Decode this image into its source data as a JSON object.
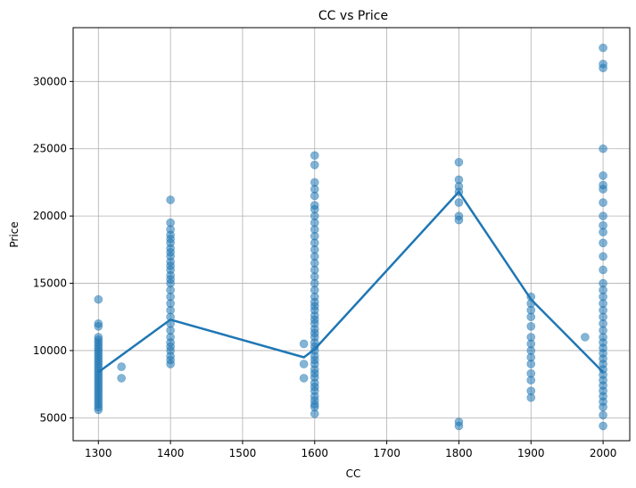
{
  "chart_data": {
    "type": "scatter",
    "title": "CC vs Price",
    "xlabel": "CC",
    "ylabel": "Price",
    "xlim": [
      1265,
      2037
    ],
    "ylim": [
      3300,
      34000
    ],
    "xticks": [
      1300,
      1400,
      1500,
      1600,
      1700,
      1800,
      1900,
      2000
    ],
    "yticks": [
      5000,
      10000,
      15000,
      20000,
      25000,
      30000
    ],
    "grid": true,
    "point_color": "#1f77b4",
    "point_alpha": 0.55,
    "line_color": "#1f77b4",
    "series": [
      {
        "type": "scatter",
        "points": [
          [
            1300,
            5600
          ],
          [
            1300,
            5800
          ],
          [
            1300,
            6000
          ],
          [
            1300,
            6200
          ],
          [
            1300,
            6400
          ],
          [
            1300,
            6600
          ],
          [
            1300,
            6800
          ],
          [
            1300,
            7000
          ],
          [
            1300,
            7200
          ],
          [
            1300,
            7400
          ],
          [
            1300,
            7600
          ],
          [
            1300,
            7800
          ],
          [
            1300,
            8000
          ],
          [
            1300,
            8200
          ],
          [
            1300,
            8400
          ],
          [
            1300,
            8600
          ],
          [
            1300,
            8800
          ],
          [
            1300,
            9000
          ],
          [
            1300,
            9200
          ],
          [
            1300,
            9400
          ],
          [
            1300,
            9600
          ],
          [
            1300,
            9800
          ],
          [
            1300,
            10000
          ],
          [
            1300,
            10200
          ],
          [
            1300,
            10400
          ],
          [
            1300,
            10600
          ],
          [
            1300,
            10800
          ],
          [
            1300,
            11000
          ],
          [
            1300,
            11800
          ],
          [
            1300,
            12000
          ],
          [
            1300,
            13800
          ],
          [
            1332,
            7950
          ],
          [
            1332,
            8800
          ],
          [
            1400,
            9000
          ],
          [
            1400,
            9300
          ],
          [
            1400,
            9600
          ],
          [
            1400,
            10000
          ],
          [
            1400,
            10300
          ],
          [
            1400,
            10600
          ],
          [
            1400,
            11000
          ],
          [
            1400,
            11500
          ],
          [
            1400,
            12000
          ],
          [
            1400,
            12500
          ],
          [
            1400,
            13000
          ],
          [
            1400,
            13500
          ],
          [
            1400,
            14000
          ],
          [
            1400,
            14500
          ],
          [
            1400,
            15000
          ],
          [
            1400,
            15300
          ],
          [
            1400,
            15600
          ],
          [
            1400,
            16000
          ],
          [
            1400,
            16300
          ],
          [
            1400,
            16600
          ],
          [
            1400,
            17000
          ],
          [
            1400,
            17300
          ],
          [
            1400,
            17600
          ],
          [
            1400,
            18000
          ],
          [
            1400,
            18300
          ],
          [
            1400,
            18600
          ],
          [
            1400,
            19000
          ],
          [
            1400,
            19500
          ],
          [
            1400,
            21200
          ],
          [
            1585,
            7950
          ],
          [
            1585,
            9000
          ],
          [
            1585,
            10500
          ],
          [
            1600,
            5300
          ],
          [
            1600,
            5800
          ],
          [
            1600,
            6000
          ],
          [
            1600,
            6300
          ],
          [
            1600,
            6600
          ],
          [
            1600,
            7000
          ],
          [
            1600,
            7300
          ],
          [
            1600,
            7600
          ],
          [
            1600,
            8000
          ],
          [
            1600,
            8300
          ],
          [
            1600,
            8600
          ],
          [
            1600,
            9000
          ],
          [
            1600,
            9300
          ],
          [
            1600,
            9600
          ],
          [
            1600,
            10000
          ],
          [
            1600,
            10300
          ],
          [
            1600,
            10600
          ],
          [
            1600,
            11000
          ],
          [
            1600,
            11300
          ],
          [
            1600,
            11600
          ],
          [
            1600,
            12000
          ],
          [
            1600,
            12300
          ],
          [
            1600,
            12600
          ],
          [
            1600,
            13000
          ],
          [
            1600,
            13300
          ],
          [
            1600,
            13600
          ],
          [
            1600,
            14000
          ],
          [
            1600,
            14500
          ],
          [
            1600,
            15000
          ],
          [
            1600,
            15500
          ],
          [
            1600,
            16000
          ],
          [
            1600,
            16500
          ],
          [
            1600,
            17000
          ],
          [
            1600,
            17500
          ],
          [
            1600,
            18000
          ],
          [
            1600,
            18500
          ],
          [
            1600,
            19000
          ],
          [
            1600,
            19500
          ],
          [
            1600,
            20000
          ],
          [
            1600,
            20500
          ],
          [
            1600,
            20800
          ],
          [
            1600,
            21500
          ],
          [
            1600,
            22000
          ],
          [
            1600,
            22500
          ],
          [
            1600,
            23800
          ],
          [
            1600,
            24500
          ],
          [
            1800,
            4400
          ],
          [
            1800,
            4700
          ],
          [
            1800,
            19700
          ],
          [
            1800,
            20000
          ],
          [
            1800,
            21000
          ],
          [
            1800,
            21800
          ],
          [
            1800,
            22200
          ],
          [
            1800,
            22700
          ],
          [
            1800,
            24000
          ],
          [
            1900,
            6500
          ],
          [
            1900,
            7000
          ],
          [
            1900,
            7800
          ],
          [
            1900,
            8300
          ],
          [
            1900,
            9000
          ],
          [
            1900,
            9500
          ],
          [
            1900,
            10000
          ],
          [
            1900,
            10500
          ],
          [
            1900,
            11000
          ],
          [
            1900,
            11800
          ],
          [
            1900,
            12500
          ],
          [
            1900,
            13000
          ],
          [
            1900,
            13500
          ],
          [
            1900,
            14000
          ],
          [
            1975,
            11000
          ],
          [
            2000,
            4400
          ],
          [
            2000,
            5200
          ],
          [
            2000,
            5800
          ],
          [
            2000,
            6200
          ],
          [
            2000,
            6600
          ],
          [
            2000,
            7000
          ],
          [
            2000,
            7400
          ],
          [
            2000,
            7800
          ],
          [
            2000,
            8200
          ],
          [
            2000,
            8600
          ],
          [
            2000,
            9000
          ],
          [
            2000,
            9400
          ],
          [
            2000,
            9800
          ],
          [
            2000,
            10200
          ],
          [
            2000,
            10600
          ],
          [
            2000,
            11000
          ],
          [
            2000,
            11500
          ],
          [
            2000,
            12000
          ],
          [
            2000,
            12500
          ],
          [
            2000,
            13000
          ],
          [
            2000,
            13500
          ],
          [
            2000,
            14000
          ],
          [
            2000,
            14500
          ],
          [
            2000,
            15000
          ],
          [
            2000,
            16000
          ],
          [
            2000,
            17000
          ],
          [
            2000,
            18000
          ],
          [
            2000,
            18800
          ],
          [
            2000,
            19300
          ],
          [
            2000,
            20000
          ],
          [
            2000,
            21000
          ],
          [
            2000,
            22000
          ],
          [
            2000,
            22300
          ],
          [
            2000,
            23000
          ],
          [
            2000,
            25000
          ],
          [
            2000,
            31000
          ],
          [
            2000,
            31300
          ],
          [
            2000,
            32500
          ]
        ]
      },
      {
        "type": "line",
        "points": [
          [
            1300,
            8400
          ],
          [
            1400,
            12300
          ],
          [
            1585,
            9500
          ],
          [
            1600,
            10100
          ],
          [
            1800,
            21800
          ],
          [
            1900,
            13800
          ],
          [
            2000,
            8400
          ]
        ]
      }
    ]
  }
}
